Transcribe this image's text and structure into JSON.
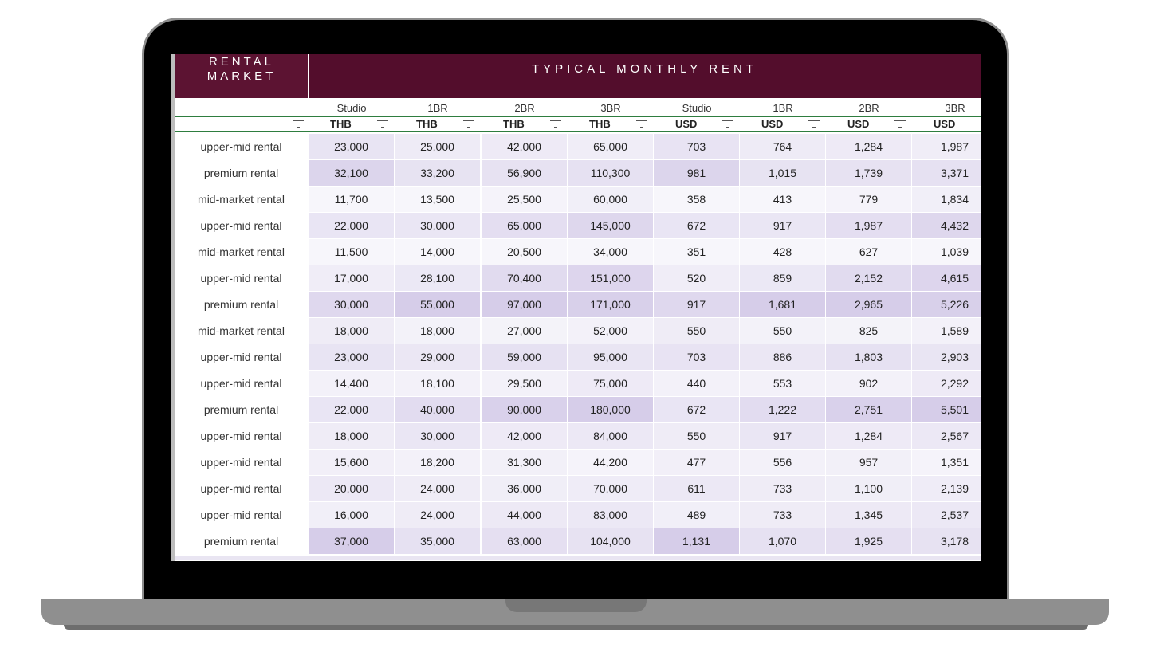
{
  "header": {
    "left_line1": "RENTAL",
    "left_line2": "MARKET",
    "title": "TYPICAL MONTHLY RENT"
  },
  "columns": [
    {
      "size": "Studio",
      "unit": "THB"
    },
    {
      "size": "1BR",
      "unit": "THB"
    },
    {
      "size": "2BR",
      "unit": "THB"
    },
    {
      "size": "3BR",
      "unit": "THB"
    },
    {
      "size": "Studio",
      "unit": "USD"
    },
    {
      "size": "1BR",
      "unit": "USD"
    },
    {
      "size": "2BR",
      "unit": "USD"
    },
    {
      "size": "3BR",
      "unit": "USD"
    }
  ],
  "rows": [
    {
      "label": "upper-mid rental",
      "values": [
        "23,000",
        "25,000",
        "42,000",
        "65,000",
        "703",
        "764",
        "1,284",
        "1,987"
      ]
    },
    {
      "label": "premium rental",
      "values": [
        "32,100",
        "33,200",
        "56,900",
        "110,300",
        "981",
        "1,015",
        "1,739",
        "3,371"
      ]
    },
    {
      "label": "mid-market rental",
      "values": [
        "11,700",
        "13,500",
        "25,500",
        "60,000",
        "358",
        "413",
        "779",
        "1,834"
      ]
    },
    {
      "label": "upper-mid rental",
      "values": [
        "22,000",
        "30,000",
        "65,000",
        "145,000",
        "672",
        "917",
        "1,987",
        "4,432"
      ]
    },
    {
      "label": "mid-market rental",
      "values": [
        "11,500",
        "14,000",
        "20,500",
        "34,000",
        "351",
        "428",
        "627",
        "1,039"
      ]
    },
    {
      "label": "upper-mid rental",
      "values": [
        "17,000",
        "28,100",
        "70,400",
        "151,000",
        "520",
        "859",
        "2,152",
        "4,615"
      ]
    },
    {
      "label": "premium rental",
      "values": [
        "30,000",
        "55,000",
        "97,000",
        "171,000",
        "917",
        "1,681",
        "2,965",
        "5,226"
      ]
    },
    {
      "label": "mid-market rental",
      "values": [
        "18,000",
        "18,000",
        "27,000",
        "52,000",
        "550",
        "550",
        "825",
        "1,589"
      ]
    },
    {
      "label": "upper-mid rental",
      "values": [
        "23,000",
        "29,000",
        "59,000",
        "95,000",
        "703",
        "886",
        "1,803",
        "2,903"
      ]
    },
    {
      "label": "upper-mid rental",
      "values": [
        "14,400",
        "18,100",
        "29,500",
        "75,000",
        "440",
        "553",
        "902",
        "2,292"
      ]
    },
    {
      "label": "premium rental",
      "values": [
        "22,000",
        "40,000",
        "90,000",
        "180,000",
        "672",
        "1,222",
        "2,751",
        "5,501"
      ]
    },
    {
      "label": "upper-mid rental",
      "values": [
        "18,000",
        "30,000",
        "42,000",
        "84,000",
        "550",
        "917",
        "1,284",
        "2,567"
      ]
    },
    {
      "label": "upper-mid rental",
      "values": [
        "15,600",
        "18,200",
        "31,300",
        "44,200",
        "477",
        "556",
        "957",
        "1,351"
      ]
    },
    {
      "label": "upper-mid rental",
      "values": [
        "20,000",
        "24,000",
        "36,000",
        "70,000",
        "611",
        "733",
        "1,100",
        "2,139"
      ]
    },
    {
      "label": "upper-mid rental",
      "values": [
        "16,000",
        "24,000",
        "44,000",
        "83,000",
        "489",
        "733",
        "1,345",
        "2,537"
      ]
    },
    {
      "label": "premium rental",
      "values": [
        "37,000",
        "35,000",
        "63,000",
        "104,000",
        "1,131",
        "1,070",
        "1,925",
        "3,178"
      ]
    }
  ],
  "colors": {
    "header_bg": "#530d2c",
    "heat_low": "#f7f6fb",
    "heat_high": "#d6cde9",
    "rule": "#2e7d3f"
  },
  "icons": {
    "filter": "filter-lines-icon"
  }
}
